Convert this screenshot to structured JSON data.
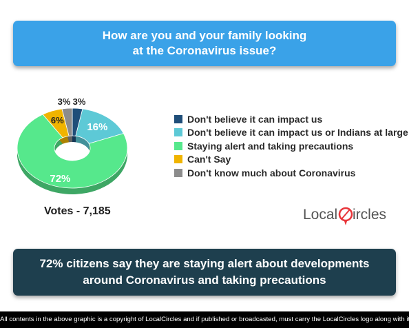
{
  "header": {
    "question": "How are you and your family looking at the Coronavirus issue?"
  },
  "chart_data": {
    "type": "pie",
    "style": "donut",
    "title": "How are you and your family looking at the Coronavirus issue?",
    "slices": [
      {
        "label": "Don't believe it can impact us",
        "value": 3,
        "display": "3%",
        "color": "#1f4e79"
      },
      {
        "label": "Don't believe it can impact us or Indians at large",
        "value": 16,
        "display": "16%",
        "color": "#5dc9d6"
      },
      {
        "label": "Staying alert and taking precautions",
        "value": 72,
        "display": "72%",
        "color": "#56e88c"
      },
      {
        "label": "Can't Say",
        "value": 6,
        "display": "6%",
        "color": "#f0b400"
      },
      {
        "label": "Don't know much about Coronavirus",
        "value": 3,
        "display": "3%",
        "color": "#8c8c8c"
      }
    ],
    "legend_position": "right"
  },
  "votes": "Votes - 7,185",
  "brand": {
    "text_local": "Local",
    "text_c": "C",
    "text_ircles": "ircles",
    "accent_color": "#e8353a"
  },
  "conclusion": "72% citizens say they are staying alert about developments around Coronavirus and taking precautions",
  "copyright": "All contents in the above graphic is a copyright of LocalCircles and if published or broadcasted, must carry the LocalCircles logo along with it."
}
